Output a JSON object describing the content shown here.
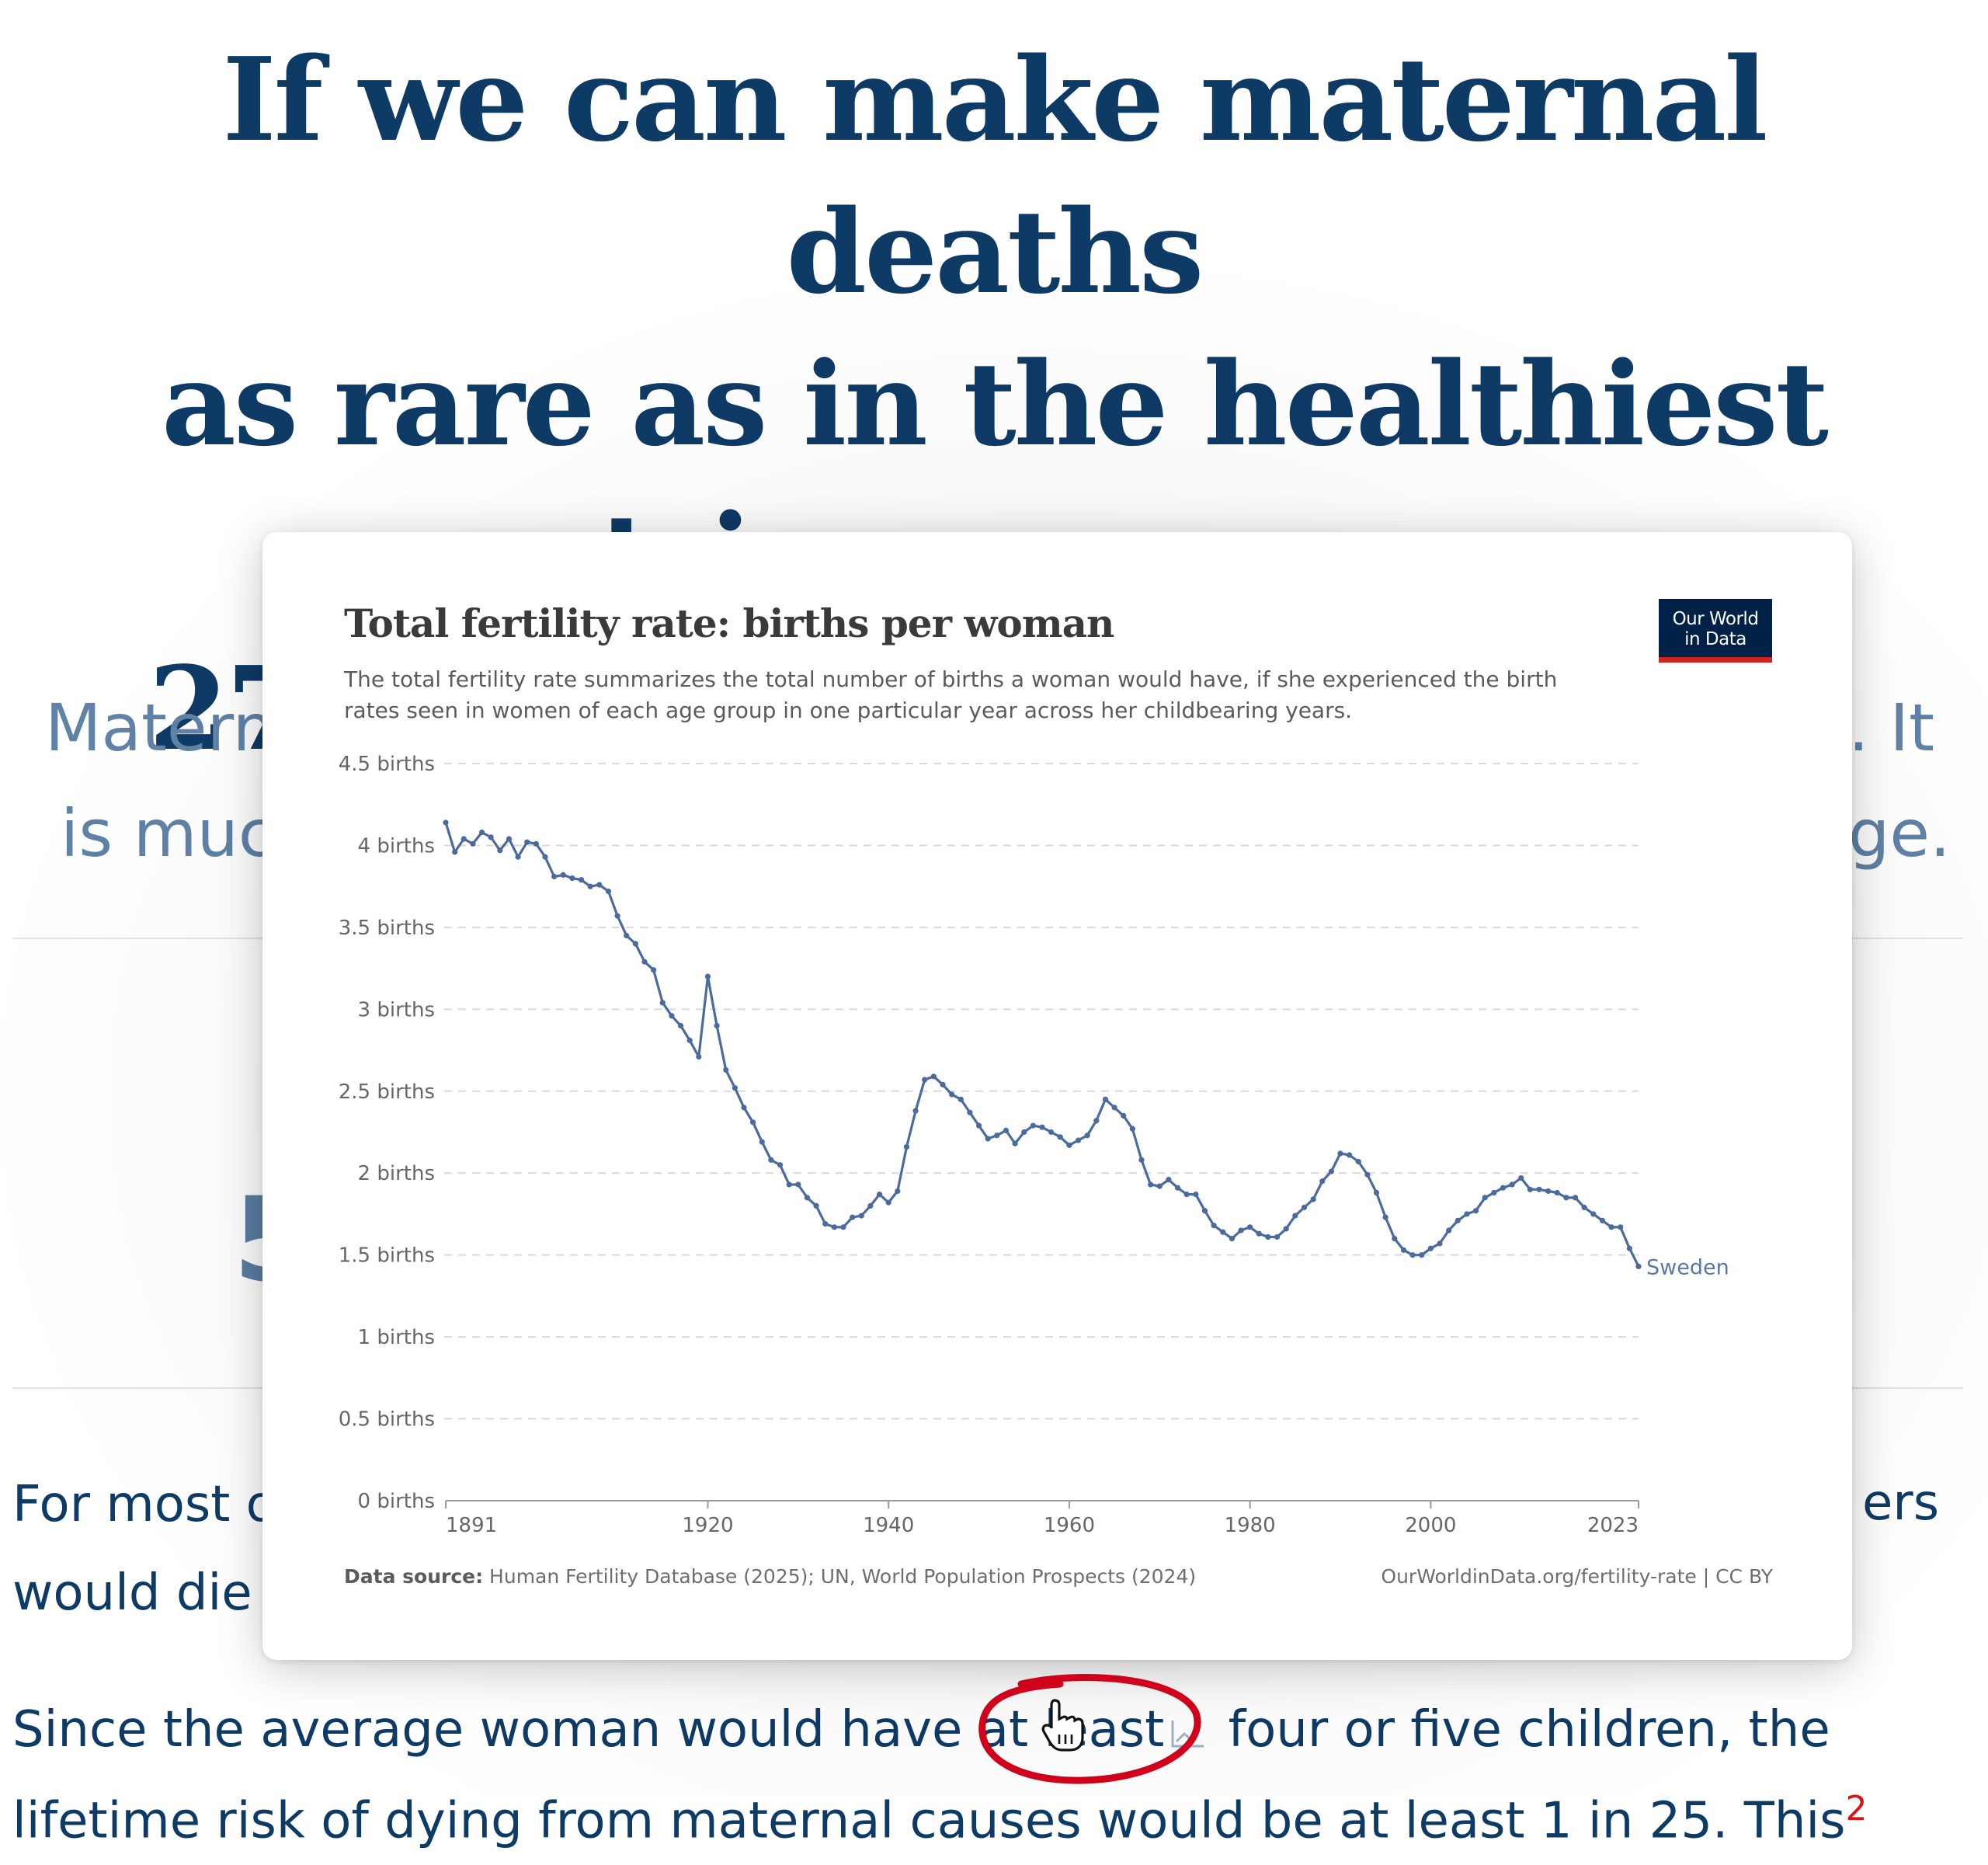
{
  "article": {
    "title_lines": [
      "If we can make maternal deaths",
      "as rare as in the healthiest",
      "countries, we can save",
      "275,000 mothers each year"
    ],
    "lede_left_lines": [
      "Matern",
      "is muc"
    ],
    "lede_right_lines": [
      ". It",
      "ge."
    ],
    "big_number_fragment": "5",
    "para1_left_lines": [
      "For most o",
      "would die"
    ],
    "para1_right_fragment": "ers",
    "para2_before_link": "Since the average woman would have at ",
    "para2_link": "least",
    "para2_after_link": " four or five children, the",
    "para3_partial": "lifetime risk of dying from maternal causes would be at least 1 in 25. This",
    "para3_footnote": "2"
  },
  "card": {
    "title": "Total fertility rate: births per woman",
    "subtitle_lines": [
      "The total fertility rate summarizes the total number of births a woman would have, if she experienced the birth",
      "rates seen in women of each age group in one particular year across her childbearing years."
    ],
    "logo_lines": [
      "Our World",
      "in Data"
    ],
    "footer_source_label": "Data source:",
    "footer_source": " Human Fertility Database (2025); UN, World Population Prospects (2024)",
    "footer_right": "OurWorldinData.org/fertility-rate | CC BY"
  },
  "colors": {
    "title_navy": "#0e3a66",
    "lede_blue": "#5f82a6",
    "series_blue": "#4c6a9c",
    "owid_navy": "#002147",
    "owid_red": "#ce261e",
    "annotation_red": "#d0021b"
  },
  "chart_data": {
    "type": "line",
    "title": "Total fertility rate: births per woman",
    "subtitle": "The total fertility rate summarizes the total number of births a woman would have, if she experienced the birth rates seen in women of each age group in one particular year across her childbearing years.",
    "xlabel": "",
    "ylabel": "",
    "ylim": [
      0,
      4.5
    ],
    "xlim": [
      1891,
      2023
    ],
    "y_ticks": [
      0,
      0.5,
      1,
      1.5,
      2,
      2.5,
      3,
      3.5,
      4,
      4.5
    ],
    "y_tick_labels": [
      "0 births",
      "0.5 births",
      "1 births",
      "1.5 births",
      "2 births",
      "2.5 births",
      "3 births",
      "3.5 births",
      "4 births",
      "4.5 births"
    ],
    "x_ticks": [
      1891,
      1920,
      1940,
      1960,
      1980,
      2000,
      2023
    ],
    "grid": "horizontal dashed",
    "legend": "inline label at line end",
    "series": [
      {
        "name": "Sweden",
        "x": [
          1891,
          1892,
          1893,
          1894,
          1895,
          1896,
          1897,
          1898,
          1899,
          1900,
          1901,
          1902,
          1903,
          1904,
          1905,
          1906,
          1907,
          1908,
          1909,
          1910,
          1911,
          1912,
          1913,
          1914,
          1915,
          1916,
          1917,
          1918,
          1919,
          1920,
          1921,
          1922,
          1923,
          1924,
          1925,
          1926,
          1927,
          1928,
          1929,
          1930,
          1931,
          1932,
          1933,
          1934,
          1935,
          1936,
          1937,
          1938,
          1939,
          1940,
          1941,
          1942,
          1943,
          1944,
          1945,
          1946,
          1947,
          1948,
          1949,
          1950,
          1951,
          1952,
          1953,
          1954,
          1955,
          1956,
          1957,
          1958,
          1959,
          1960,
          1961,
          1962,
          1963,
          1964,
          1965,
          1966,
          1967,
          1968,
          1969,
          1970,
          1971,
          1972,
          1973,
          1974,
          1975,
          1976,
          1977,
          1978,
          1979,
          1980,
          1981,
          1982,
          1983,
          1984,
          1985,
          1986,
          1987,
          1988,
          1989,
          1990,
          1991,
          1992,
          1993,
          1994,
          1995,
          1996,
          1997,
          1998,
          1999,
          2000,
          2001,
          2002,
          2003,
          2004,
          2005,
          2006,
          2007,
          2008,
          2009,
          2010,
          2011,
          2012,
          2013,
          2014,
          2015,
          2016,
          2017,
          2018,
          2019,
          2020,
          2021,
          2022,
          2023
        ],
        "values": [
          4.14,
          3.96,
          4.04,
          4.01,
          4.08,
          4.05,
          3.97,
          4.04,
          3.93,
          4.02,
          4.01,
          3.93,
          3.81,
          3.82,
          3.8,
          3.79,
          3.75,
          3.76,
          3.72,
          3.57,
          3.45,
          3.4,
          3.29,
          3.24,
          3.04,
          2.96,
          2.9,
          2.81,
          2.71,
          3.2,
          2.9,
          2.63,
          2.52,
          2.4,
          2.31,
          2.19,
          2.08,
          2.05,
          1.93,
          1.93,
          1.85,
          1.8,
          1.69,
          1.67,
          1.67,
          1.73,
          1.74,
          1.8,
          1.87,
          1.82,
          1.89,
          2.16,
          2.38,
          2.57,
          2.59,
          2.54,
          2.48,
          2.45,
          2.37,
          2.29,
          2.21,
          2.23,
          2.26,
          2.18,
          2.25,
          2.29,
          2.28,
          2.25,
          2.22,
          2.17,
          2.2,
          2.23,
          2.32,
          2.45,
          2.4,
          2.35,
          2.27,
          2.08,
          1.93,
          1.92,
          1.96,
          1.91,
          1.87,
          1.87,
          1.77,
          1.68,
          1.64,
          1.6,
          1.65,
          1.67,
          1.63,
          1.61,
          1.61,
          1.66,
          1.74,
          1.79,
          1.84,
          1.95,
          2.01,
          2.12,
          2.11,
          2.07,
          1.99,
          1.88,
          1.73,
          1.6,
          1.53,
          1.5,
          1.5,
          1.54,
          1.57,
          1.65,
          1.71,
          1.75,
          1.77,
          1.85,
          1.88,
          1.91,
          1.93,
          1.97,
          1.9,
          1.9,
          1.89,
          1.88,
          1.85,
          1.85,
          1.79,
          1.75,
          1.71,
          1.67,
          1.67,
          1.54,
          1.43
        ]
      }
    ]
  }
}
